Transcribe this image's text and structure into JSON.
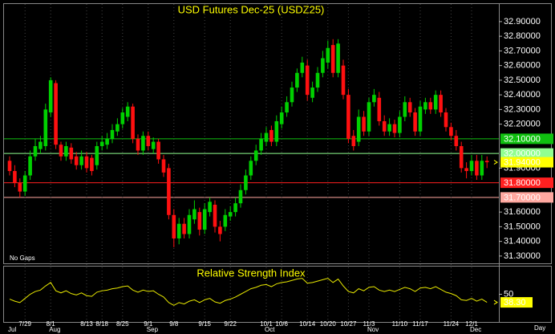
{
  "chart_data": [
    {
      "type": "candlestick",
      "title": "USD Futures Dec-25 (USDZ25)",
      "note": "No Gaps",
      "x_unit": "Day",
      "categories": [
        null,
        null,
        null,
        "7/29",
        null,
        null,
        null,
        null,
        "8/1",
        null,
        null,
        null,
        null,
        null,
        null,
        "8/13",
        null,
        null,
        "8/18",
        null,
        null,
        null,
        "8/25",
        null,
        null,
        null,
        null,
        "9/1",
        null,
        null,
        null,
        null,
        "9/8",
        null,
        null,
        null,
        null,
        null,
        "9/15",
        null,
        null,
        null,
        null,
        "9/22",
        null,
        null,
        null,
        null,
        null,
        null,
        "10/1",
        null,
        null,
        "10/6",
        null,
        null,
        null,
        null,
        "10/14",
        null,
        null,
        null,
        "10/20",
        null,
        null,
        null,
        "10/27",
        null,
        null,
        null,
        "11/3",
        null,
        null,
        null,
        null,
        null,
        "11/10",
        null,
        null,
        null,
        "11/17",
        null,
        null,
        null,
        null,
        null,
        "11/24",
        null,
        null,
        null,
        "12/1",
        null,
        null,
        null
      ],
      "months": [
        "Jul",
        null,
        null,
        null,
        null,
        null,
        null,
        null,
        "Aug",
        null,
        null,
        null,
        null,
        null,
        null,
        null,
        null,
        null,
        null,
        null,
        null,
        null,
        null,
        null,
        null,
        null,
        null,
        "Sep",
        null,
        null,
        null,
        null,
        null,
        null,
        null,
        null,
        null,
        null,
        null,
        null,
        null,
        null,
        null,
        null,
        null,
        null,
        null,
        null,
        null,
        null,
        "Oct",
        null,
        null,
        null,
        null,
        null,
        null,
        null,
        null,
        null,
        null,
        null,
        null,
        null,
        null,
        null,
        null,
        null,
        null,
        null,
        "Nov",
        null,
        null,
        null,
        null,
        null,
        null,
        null,
        null,
        null,
        null,
        null,
        null,
        null,
        null,
        null,
        null,
        null,
        null,
        null,
        "Dec",
        null,
        null,
        null
      ],
      "open": [
        31.95,
        31.88,
        31.8,
        31.74,
        31.85,
        31.98,
        32.03,
        32.05,
        32.28,
        32.48,
        32.06,
        31.98,
        32.04,
        31.98,
        31.92,
        31.98,
        31.97,
        31.92,
        32.05,
        32.06,
        32.1,
        32.15,
        32.2,
        32.25,
        32.32,
        32.1,
        32.02,
        32.12,
        32.03,
        32.08,
        31.96,
        31.9,
        31.58,
        31.42,
        31.52,
        31.45,
        31.55,
        31.6,
        31.48,
        31.6,
        31.65,
        31.5,
        31.5,
        31.57,
        31.6,
        31.66,
        31.75,
        31.85,
        31.95,
        32.02,
        32.08,
        32.16,
        32.08,
        32.2,
        32.28,
        32.35,
        32.45,
        32.55,
        32.6,
        32.38,
        32.45,
        32.55,
        32.62,
        32.74,
        32.55,
        32.6,
        32.4,
        32.12,
        32.08,
        32.25,
        32.15,
        32.35,
        32.38,
        32.22,
        32.15,
        32.2,
        32.14,
        32.25,
        32.35,
        32.28,
        32.15,
        32.3,
        32.35,
        32.3,
        32.4,
        32.28,
        32.18,
        32.12,
        32.05,
        31.9,
        31.88,
        31.95,
        31.85,
        31.95
      ],
      "high": [
        31.98,
        31.92,
        31.83,
        31.88,
        32.02,
        32.1,
        32.12,
        32.34,
        32.52,
        32.5,
        32.08,
        32.08,
        32.07,
        32.01,
        32.02,
        32.01,
        31.99,
        32.08,
        32.12,
        32.14,
        32.2,
        32.24,
        32.31,
        32.35,
        32.34,
        32.13,
        32.15,
        32.15,
        32.11,
        32.1,
        31.99,
        31.93,
        31.62,
        31.56,
        31.56,
        31.62,
        31.68,
        31.63,
        31.66,
        31.7,
        31.68,
        31.54,
        31.62,
        31.64,
        31.7,
        31.79,
        31.89,
        31.98,
        32.06,
        32.14,
        32.18,
        32.19,
        32.26,
        32.32,
        32.39,
        32.49,
        32.58,
        32.66,
        32.64,
        32.49,
        32.59,
        32.7,
        32.77,
        32.78,
        32.78,
        32.64,
        32.44,
        32.16,
        32.3,
        32.29,
        32.38,
        32.44,
        32.42,
        32.26,
        32.24,
        32.23,
        32.29,
        32.39,
        32.38,
        32.31,
        32.36,
        32.38,
        32.38,
        32.43,
        32.43,
        32.31,
        32.21,
        32.16,
        32.08,
        31.94,
        31.99,
        31.99,
        31.99,
        31.98
      ],
      "low": [
        31.85,
        31.77,
        31.7,
        31.71,
        31.82,
        31.95,
        32.0,
        32.02,
        32.25,
        32.03,
        31.95,
        31.95,
        31.93,
        31.89,
        31.89,
        31.87,
        31.85,
        31.89,
        32.02,
        32.03,
        32.07,
        32.12,
        32.17,
        32.22,
        32.07,
        31.99,
        31.99,
        32.02,
        32.0,
        31.93,
        31.84,
        31.55,
        31.36,
        31.38,
        31.42,
        31.42,
        31.52,
        31.44,
        31.45,
        31.57,
        31.46,
        31.4,
        31.47,
        31.54,
        31.57,
        31.63,
        31.72,
        31.82,
        31.92,
        31.99,
        32.05,
        32.05,
        32.05,
        32.17,
        32.25,
        32.32,
        32.42,
        32.52,
        32.36,
        32.35,
        32.42,
        32.52,
        32.58,
        32.52,
        32.52,
        32.37,
        32.07,
        32.02,
        32.05,
        32.12,
        32.12,
        32.32,
        32.19,
        32.12,
        32.12,
        32.11,
        32.11,
        32.22,
        32.25,
        32.12,
        32.12,
        32.27,
        32.27,
        32.27,
        32.25,
        32.15,
        32.09,
        32.02,
        31.87,
        31.83,
        31.85,
        31.82,
        31.82,
        31.9
      ],
      "close": [
        31.88,
        31.8,
        31.74,
        31.85,
        31.98,
        32.05,
        32.08,
        32.3,
        32.5,
        32.06,
        31.98,
        32.05,
        31.96,
        31.92,
        31.98,
        31.9,
        31.88,
        32.05,
        32.08,
        32.1,
        32.16,
        32.2,
        32.28,
        32.32,
        32.1,
        32.02,
        32.12,
        32.05,
        32.08,
        31.96,
        31.87,
        31.58,
        31.42,
        31.52,
        31.45,
        31.58,
        31.62,
        31.48,
        31.62,
        31.67,
        31.5,
        31.45,
        31.58,
        31.6,
        31.66,
        31.75,
        31.85,
        31.95,
        32.02,
        32.1,
        32.14,
        32.08,
        32.22,
        32.28,
        32.35,
        32.45,
        32.55,
        32.62,
        32.4,
        32.45,
        32.55,
        32.65,
        32.72,
        32.55,
        32.75,
        32.4,
        32.1,
        32.05,
        32.25,
        32.15,
        32.35,
        32.4,
        32.22,
        32.15,
        32.2,
        32.14,
        32.25,
        32.35,
        32.28,
        32.15,
        32.32,
        32.35,
        32.3,
        32.4,
        32.28,
        32.18,
        32.12,
        32.05,
        31.9,
        31.88,
        31.95,
        31.85,
        31.95,
        31.94
      ],
      "up_color": "#00d000",
      "down_color": "#ff1010",
      "last_label": "31.94000",
      "last_color": "#ffff00",
      "ylim": [
        31.25,
        33.02
      ],
      "yticks": [
        {
          "value": 31.3,
          "label": "31.30000"
        },
        {
          "value": 31.4,
          "label": "31.40000"
        },
        {
          "value": 31.5,
          "label": "31.50000"
        },
        {
          "value": 31.6,
          "label": "31.60000"
        },
        {
          "value": 31.9,
          "label": "31.90000"
        },
        {
          "value": 32.2,
          "label": "32.20000"
        },
        {
          "value": 32.3,
          "label": "32.30000"
        },
        {
          "value": 32.4,
          "label": "32.40000"
        },
        {
          "value": 32.5,
          "label": "32.50000"
        },
        {
          "value": 32.6,
          "label": "32.60000"
        },
        {
          "value": 32.7,
          "label": "32.70000"
        },
        {
          "value": 32.8,
          "label": "32.80000"
        },
        {
          "value": 32.9,
          "label": "32.90000"
        }
      ],
      "levels": [
        {
          "value": 32.1,
          "label": "32.10000",
          "color": "#10c010"
        },
        {
          "value": 32.0,
          "label": "32.00000",
          "color": "#90ff90"
        },
        {
          "value": 31.8,
          "label": "31.80000",
          "color": "#ff2020"
        },
        {
          "value": 31.7,
          "label": "31.70000",
          "color": "#ffa8a0"
        }
      ]
    },
    {
      "type": "line",
      "title": "Relative Strength Index",
      "color": "#e8e800",
      "values": [
        43,
        40,
        38,
        44,
        50,
        54,
        56,
        62,
        67,
        55,
        52,
        55,
        51,
        49,
        52,
        48,
        47,
        53,
        55,
        56,
        58,
        59,
        61,
        62,
        56,
        53,
        56,
        54,
        55,
        50,
        46,
        38,
        34,
        38,
        36,
        40,
        42,
        38,
        42,
        44,
        39,
        37,
        41,
        43,
        46,
        50,
        54,
        58,
        60,
        63,
        64,
        61,
        65,
        67,
        68,
        70,
        72,
        73,
        66,
        67,
        69,
        71,
        73,
        67,
        72,
        62,
        54,
        52,
        58,
        55,
        60,
        61,
        56,
        54,
        56,
        54,
        57,
        60,
        58,
        54,
        59,
        60,
        58,
        61,
        57,
        53,
        51,
        48,
        42,
        41,
        44,
        40,
        43,
        38.3
      ],
      "last_label": "38.30",
      "last_color": "#ffff00",
      "ylim": [
        10,
        90
      ],
      "yticks": [
        50
      ]
    }
  ]
}
